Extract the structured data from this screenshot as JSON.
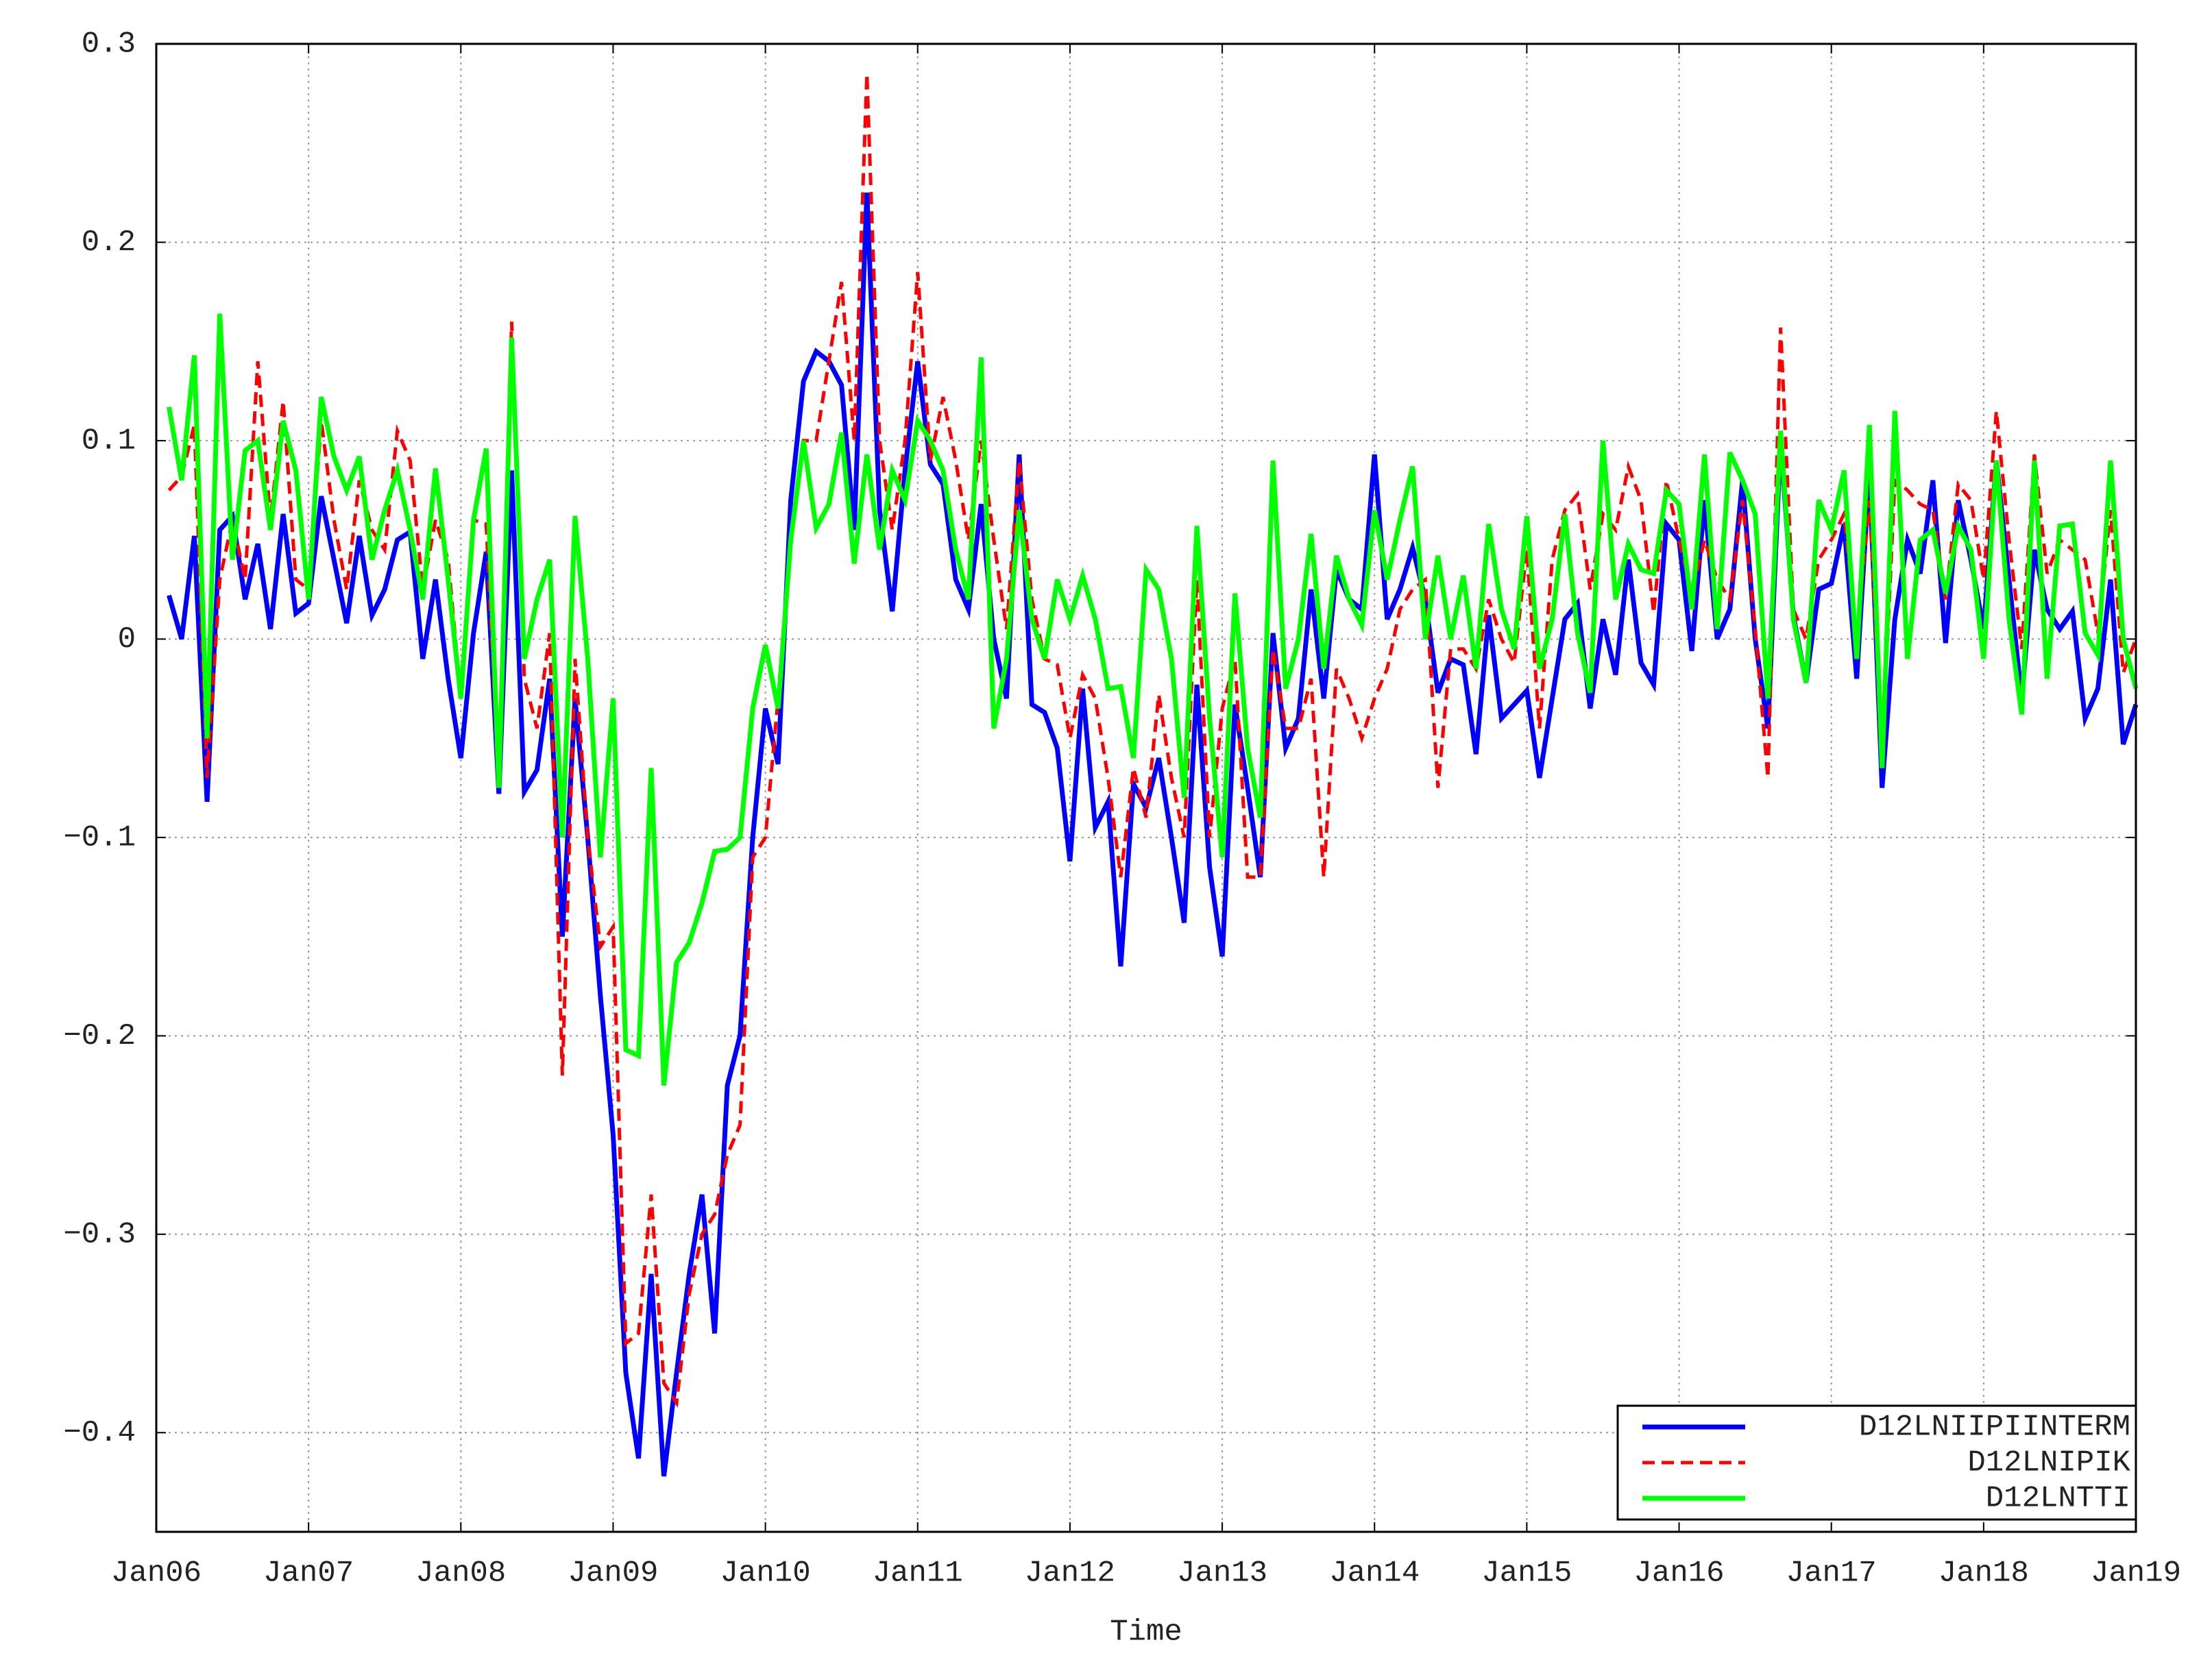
{
  "chart_data": {
    "type": "line",
    "xlabel": "Time",
    "x": [
      1,
      2,
      3,
      4,
      5,
      6,
      7,
      8,
      9,
      10,
      11,
      12,
      13,
      14,
      15,
      16,
      17,
      18,
      19,
      20,
      21,
      22,
      23,
      24,
      25,
      26,
      27,
      28,
      29,
      30,
      31,
      32,
      33,
      34,
      35,
      36,
      37,
      38,
      39,
      40,
      41,
      42,
      43,
      44,
      45,
      46,
      47,
      48,
      49,
      50,
      51,
      52,
      53,
      54,
      55,
      56,
      57,
      58,
      59,
      60,
      61,
      62,
      63,
      64,
      65,
      66,
      67,
      68,
      69,
      70,
      71,
      72,
      73,
      74,
      75,
      76,
      77,
      78,
      79,
      80,
      81,
      82,
      83,
      84,
      85,
      86,
      87,
      88,
      89,
      90,
      91,
      92,
      93,
      94,
      95,
      96,
      97,
      98,
      99,
      100,
      101,
      102,
      103,
      104,
      105,
      106,
      107,
      108,
      109,
      110,
      111,
      112,
      113,
      114,
      115,
      116,
      117,
      118,
      119,
      120,
      121,
      122,
      123,
      124,
      125,
      126,
      127,
      128,
      129,
      130,
      131,
      132,
      133,
      134,
      135,
      136,
      137,
      138,
      139,
      140,
      141,
      142,
      143,
      144,
      145,
      146,
      147,
      148,
      149,
      150,
      151,
      152,
      153,
      154,
      155,
      156
    ],
    "xlim": [
      0,
      156
    ],
    "xticks": [
      {
        "value": 0,
        "label": "Jan06"
      },
      {
        "value": 12,
        "label": "Jan07"
      },
      {
        "value": 24,
        "label": "Jan08"
      },
      {
        "value": 36,
        "label": "Jan09"
      },
      {
        "value": 48,
        "label": "Jan10"
      },
      {
        "value": 60,
        "label": "Jan11"
      },
      {
        "value": 72,
        "label": "Jan12"
      },
      {
        "value": 84,
        "label": "Jan13"
      },
      {
        "value": 96,
        "label": "Jan14"
      },
      {
        "value": 108,
        "label": "Jan15"
      },
      {
        "value": 120,
        "label": "Jan16"
      },
      {
        "value": 132,
        "label": "Jan17"
      },
      {
        "value": 144,
        "label": "Jan18"
      },
      {
        "value": 156,
        "label": "Jan19"
      }
    ],
    "ylim": [
      -0.45,
      0.3
    ],
    "yticks": [
      {
        "value": -0.4,
        "label": "−0.4"
      },
      {
        "value": -0.3,
        "label": "−0.3"
      },
      {
        "value": -0.2,
        "label": "−0.2"
      },
      {
        "value": -0.1,
        "label": "−0.1"
      },
      0,
      0.1,
      0.2,
      0.3
    ],
    "grid": true,
    "legend": "lower right",
    "series": [
      {
        "name": "D12LNIIPIINTERM",
        "color": "#0000ff",
        "linestyle": "solid",
        "values": [
          0.022,
          0.0,
          0.052,
          -0.082,
          0.055,
          0.062,
          0.02,
          0.048,
          0.005,
          0.063,
          0.013,
          0.018,
          0.072,
          0.04,
          0.008,
          0.052,
          0.012,
          0.025,
          0.05,
          0.054,
          -0.01,
          0.03,
          -0.02,
          -0.06,
          0.003,
          0.044,
          -0.078,
          0.085,
          -0.077,
          -0.066,
          -0.02,
          -0.15,
          -0.03,
          -0.1,
          -0.18,
          -0.25,
          -0.37,
          -0.413,
          -0.32,
          -0.422,
          -0.37,
          -0.32,
          -0.28,
          -0.35,
          -0.225,
          -0.2,
          -0.1,
          -0.035,
          -0.063,
          0.07,
          0.13,
          0.145,
          0.14,
          0.128,
          0.055,
          0.225,
          0.065,
          0.014,
          0.085,
          0.14,
          0.088,
          0.078,
          0.03,
          0.015,
          0.068,
          0.0,
          -0.03,
          0.093,
          -0.033,
          -0.037,
          -0.055,
          -0.112,
          -0.025,
          -0.095,
          -0.082,
          -0.165,
          -0.073,
          -0.085,
          -0.06,
          -0.1,
          -0.143,
          -0.023,
          -0.115,
          -0.16,
          -0.033,
          -0.075,
          -0.12,
          0.003,
          -0.055,
          -0.04,
          0.025,
          -0.03,
          0.035,
          0.02,
          0.015,
          0.093,
          0.01,
          0.025,
          0.046,
          0.02,
          -0.027,
          -0.01,
          -0.013,
          -0.058,
          0.012,
          -0.04,
          -0.033,
          -0.026,
          -0.07,
          -0.03,
          0.01,
          0.018,
          -0.035,
          0.01,
          -0.018,
          0.04,
          -0.012,
          -0.023,
          0.058,
          0.05,
          -0.006,
          0.07,
          0.0,
          0.015,
          0.08,
          0.0,
          -0.045,
          0.1,
          0.012,
          -0.022,
          0.025,
          0.028,
          0.058,
          -0.02,
          0.085,
          -0.075,
          0.01,
          0.05,
          0.033,
          0.08,
          -0.002,
          0.07,
          0.04,
          0.005,
          0.09,
          0.03,
          -0.03,
          0.045,
          0.015,
          0.005,
          0.014,
          -0.04,
          -0.025,
          0.03,
          -0.053,
          -0.033
        ]
      },
      {
        "name": "D12LNIPIK",
        "color": "#ff0000",
        "linestyle": "dashed",
        "values": [
          0.075,
          0.082,
          0.108,
          -0.07,
          0.03,
          0.06,
          0.03,
          0.14,
          0.06,
          0.12,
          0.03,
          0.025,
          0.11,
          0.06,
          0.025,
          0.08,
          0.055,
          0.045,
          0.105,
          0.09,
          0.025,
          0.06,
          0.04,
          -0.03,
          0.06,
          0.058,
          -0.075,
          0.16,
          -0.02,
          -0.045,
          0.003,
          -0.22,
          -0.01,
          -0.1,
          -0.155,
          -0.145,
          -0.355,
          -0.35,
          -0.28,
          -0.375,
          -0.385,
          -0.33,
          -0.3,
          -0.29,
          -0.26,
          -0.245,
          -0.11,
          -0.1,
          -0.03,
          0.05,
          0.1,
          0.1,
          0.14,
          0.18,
          0.1,
          0.285,
          0.1,
          0.055,
          0.1,
          0.185,
          0.09,
          0.122,
          0.09,
          0.05,
          0.1,
          0.05,
          0.005,
          0.09,
          0.02,
          -0.01,
          -0.013,
          -0.05,
          -0.018,
          -0.03,
          -0.07,
          -0.12,
          -0.065,
          -0.09,
          -0.028,
          -0.07,
          -0.1,
          0.03,
          -0.1,
          -0.035,
          -0.01,
          -0.12,
          -0.12,
          -0.005,
          -0.045,
          -0.045,
          -0.02,
          -0.12,
          -0.015,
          -0.03,
          -0.05,
          -0.03,
          -0.015,
          0.015,
          0.025,
          0.03,
          -0.075,
          -0.005,
          -0.005,
          -0.015,
          0.02,
          0.0,
          -0.012,
          0.045,
          -0.045,
          0.04,
          0.065,
          0.073,
          0.025,
          0.063,
          0.055,
          0.087,
          0.07,
          0.013,
          0.08,
          0.05,
          0.023,
          0.05,
          0.03,
          0.02,
          0.07,
          0.005,
          -0.07,
          0.157,
          0.015,
          0.0,
          0.04,
          0.05,
          0.063,
          0.0,
          0.07,
          -0.06,
          0.08,
          0.075,
          0.068,
          0.065,
          0.02,
          0.078,
          0.07,
          0.03,
          0.115,
          0.05,
          -0.005,
          0.093,
          0.033,
          0.05,
          0.045,
          0.04,
          0.003,
          0.065,
          -0.017,
          0.0
        ]
      },
      {
        "name": "D12LNTTI",
        "color": "#00ff00",
        "linestyle": "solid",
        "values": [
          0.117,
          0.08,
          0.143,
          -0.05,
          0.164,
          0.04,
          0.095,
          0.1,
          0.055,
          0.11,
          0.085,
          0.02,
          0.122,
          0.092,
          0.075,
          0.092,
          0.04,
          0.065,
          0.085,
          0.055,
          0.02,
          0.086,
          0.03,
          -0.03,
          0.06,
          0.096,
          -0.075,
          0.152,
          -0.01,
          0.02,
          0.04,
          -0.1,
          0.062,
          -0.01,
          -0.11,
          -0.03,
          -0.207,
          -0.21,
          -0.065,
          -0.225,
          -0.163,
          -0.153,
          -0.133,
          -0.107,
          -0.106,
          -0.1,
          -0.035,
          -0.003,
          -0.035,
          0.05,
          0.1,
          0.056,
          0.068,
          0.104,
          0.038,
          0.093,
          0.045,
          0.085,
          0.07,
          0.11,
          0.1,
          0.085,
          0.045,
          0.02,
          0.142,
          -0.045,
          -0.01,
          0.065,
          0.01,
          -0.01,
          0.03,
          0.01,
          0.032,
          0.01,
          -0.025,
          -0.024,
          -0.06,
          0.035,
          0.025,
          -0.01,
          -0.08,
          0.057,
          -0.04,
          -0.11,
          0.023,
          -0.055,
          -0.09,
          0.09,
          -0.025,
          0.0,
          0.053,
          -0.015,
          0.042,
          0.02,
          0.007,
          0.065,
          0.03,
          0.06,
          0.087,
          0.0,
          0.042,
          0.0,
          0.032,
          -0.015,
          0.058,
          0.015,
          -0.005,
          0.062,
          -0.015,
          0.01,
          0.063,
          0.003,
          -0.027,
          0.1,
          0.02,
          0.048,
          0.035,
          0.033,
          0.075,
          0.068,
          0.015,
          0.093,
          0.005,
          0.094,
          0.08,
          0.063,
          -0.03,
          0.105,
          0.01,
          -0.022,
          0.07,
          0.055,
          0.085,
          -0.01,
          0.108,
          -0.065,
          0.115,
          -0.01,
          0.05,
          0.055,
          0.023,
          0.057,
          0.045,
          -0.01,
          0.09,
          0.01,
          -0.038,
          0.09,
          -0.02,
          0.057,
          0.058,
          0.003,
          -0.008,
          0.09,
          0.0,
          -0.025
        ]
      }
    ]
  }
}
